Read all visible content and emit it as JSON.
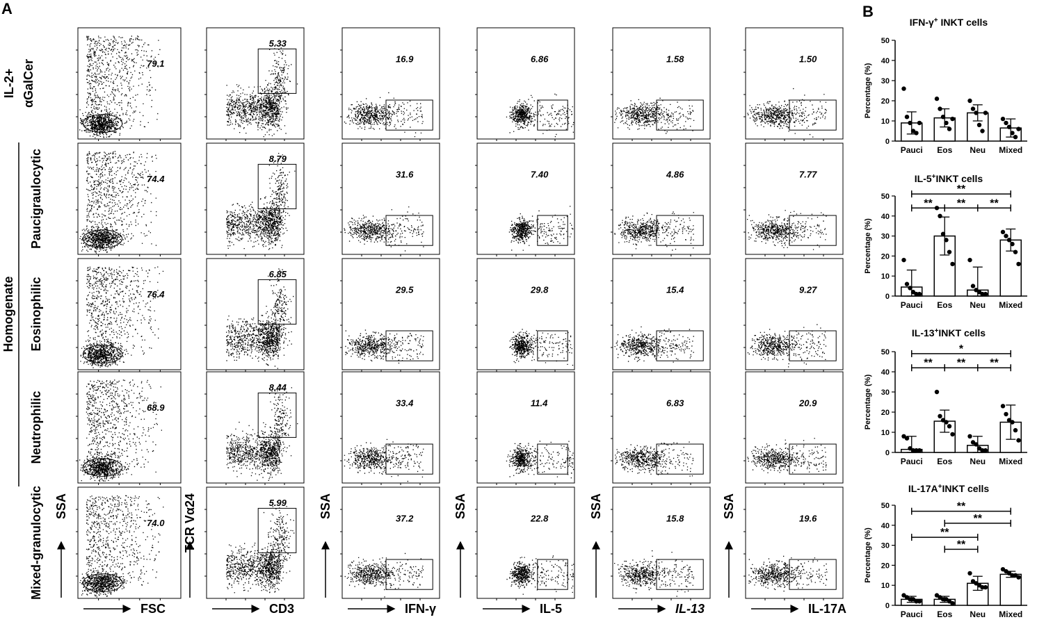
{
  "panel_labels": {
    "a": "A",
    "b": "B"
  },
  "homogenate_label": "Homogenate",
  "row_labels": [
    [
      "IL-2+",
      "αGalCer"
    ],
    [
      "Paucigraulocytic"
    ],
    [
      "Eosinophilic"
    ],
    [
      "Neutrophilic"
    ],
    [
      "Mixed-granulocytic"
    ]
  ],
  "flow_columns": [
    {
      "y_axis": "SSA",
      "x_axis": "FSC",
      "kind": "scatter-gate"
    },
    {
      "y_axis": "TCR Vα24",
      "x_axis": "CD3",
      "kind": "cd3-gate"
    },
    {
      "y_axis": "SSA",
      "x_axis": "IFN-γ",
      "kind": "cytokine"
    },
    {
      "y_axis": "SSA",
      "x_axis": "IL-5",
      "kind": "cytokine"
    },
    {
      "y_axis": "SSA",
      "x_axis": "IL-13",
      "kind": "cytokine"
    },
    {
      "y_axis": "SSA",
      "x_axis": "IL-17A",
      "kind": "cytokine"
    }
  ],
  "flow_values": [
    [
      "79.1",
      "5.33",
      "16.9",
      "6.86",
      "1.58",
      "1.50"
    ],
    [
      "74.4",
      "8.79",
      "31.6",
      "7.40",
      "4.86",
      "7.77"
    ],
    [
      "76.4",
      "6.85",
      "29.5",
      "29.8",
      "15.4",
      "9.27"
    ],
    [
      "68.9",
      "8.44",
      "33.4",
      "11.4",
      "6.83",
      "20.9"
    ],
    [
      "74.0",
      "5.99",
      "37.2",
      "22.8",
      "15.8",
      "19.6"
    ]
  ],
  "colors": {
    "ink": "#000000",
    "bar_fill": "#ffffff",
    "background": "#ffffff"
  },
  "chart_data": [
    {
      "type": "bar",
      "title_main": "IFN-γ",
      "title_sup": "+",
      "title_rest": " INKT cells",
      "categories": [
        "Pauci",
        "Eos",
        "Neu",
        "Mixed"
      ],
      "ylabel": "Percentage (%)",
      "ylim": [
        0,
        50
      ],
      "yticks": [
        "0",
        "10",
        "20",
        "30",
        "40",
        "50"
      ],
      "values": [
        9,
        11.5,
        14,
        6.5
      ],
      "sd": [
        5.5,
        4.5,
        4,
        4.5
      ],
      "points": [
        [
          26,
          12,
          9,
          5,
          4,
          9
        ],
        [
          21,
          16,
          12,
          9,
          6,
          11
        ],
        [
          20,
          16,
          14,
          8,
          5,
          14
        ],
        [
          11,
          9,
          7,
          4,
          2,
          6
        ]
      ],
      "significance": []
    },
    {
      "type": "bar",
      "title_main": "IL-5",
      "title_sup": "+",
      "title_rest": "INKT cells",
      "categories": [
        "Pauci",
        "Eos",
        "Neu",
        "Mixed"
      ],
      "ylabel": "Percentage (%)",
      "ylim": [
        0,
        50
      ],
      "yticks": [
        "0",
        "10",
        "20",
        "30",
        "40",
        "50"
      ],
      "values": [
        4.5,
        30,
        3,
        28
      ],
      "sd": [
        8.5,
        9.5,
        11.5,
        5.5
      ],
      "points": [
        [
          18,
          6,
          4,
          2,
          1,
          1
        ],
        [
          44,
          40,
          31,
          28,
          22,
          16
        ],
        [
          18,
          5,
          3,
          2,
          1,
          1
        ],
        [
          32,
          30,
          28,
          26,
          22,
          16
        ]
      ],
      "significance": [
        {
          "from": 0,
          "to": 3,
          "label": "**",
          "y": 51
        },
        {
          "from": 0,
          "to": 1,
          "label": "**",
          "y": 44
        },
        {
          "from": 1,
          "to": 2,
          "label": "**",
          "y": 44
        },
        {
          "from": 2,
          "to": 3,
          "label": "**",
          "y": 44
        }
      ]
    },
    {
      "type": "bar",
      "title_main": "IL-13",
      "title_sup": "+",
      "title_rest": "INKT cells",
      "categories": [
        "Pauci",
        "Eos",
        "Neu",
        "Mixed"
      ],
      "ylabel": "Percentage (%)",
      "ylim": [
        0,
        50
      ],
      "yticks": [
        "0",
        "10",
        "20",
        "30",
        "40",
        "50"
      ],
      "values": [
        1.5,
        15.5,
        3.5,
        15
      ],
      "sd": [
        6.5,
        5.5,
        4.5,
        8.5
      ],
      "points": [
        [
          8,
          7,
          2,
          1,
          1,
          1
        ],
        [
          30,
          18,
          16,
          15,
          13,
          9
        ],
        [
          8,
          5,
          4,
          2,
          1,
          1
        ],
        [
          23,
          19,
          16,
          15,
          11,
          6
        ]
      ],
      "significance": [
        {
          "from": 0,
          "to": 3,
          "label": "*",
          "y": 49
        },
        {
          "from": 0,
          "to": 1,
          "label": "**",
          "y": 42
        },
        {
          "from": 1,
          "to": 2,
          "label": "**",
          "y": 42
        },
        {
          "from": 2,
          "to": 3,
          "label": "**",
          "y": 42
        }
      ]
    },
    {
      "type": "bar",
      "title_main": "IL-17A",
      "title_sup": "+",
      "title_rest": "INKT cells",
      "categories": [
        "Pauci",
        "Eos",
        "Neu",
        "Mixed"
      ],
      "ylabel": "Percentage (%)",
      "ylim": [
        0,
        50
      ],
      "yticks": [
        "0",
        "10",
        "20",
        "30",
        "40",
        "50"
      ],
      "values": [
        3,
        3,
        11,
        15.5
      ],
      "sd": [
        1.5,
        1.5,
        3.5,
        1.5
      ],
      "points": [
        [
          5,
          4,
          3,
          3,
          2,
          2
        ],
        [
          5,
          4,
          3,
          3,
          2,
          1
        ],
        [
          16,
          12,
          11,
          10,
          9,
          9
        ],
        [
          18,
          17,
          16,
          15,
          15,
          14
        ]
      ],
      "significance": [
        {
          "from": 0,
          "to": 3,
          "label": "**",
          "y": 47
        },
        {
          "from": 1,
          "to": 3,
          "label": "**",
          "y": 41
        },
        {
          "from": 0,
          "to": 2,
          "label": "**",
          "y": 34
        },
        {
          "from": 1,
          "to": 2,
          "label": "**",
          "y": 28
        }
      ]
    }
  ]
}
